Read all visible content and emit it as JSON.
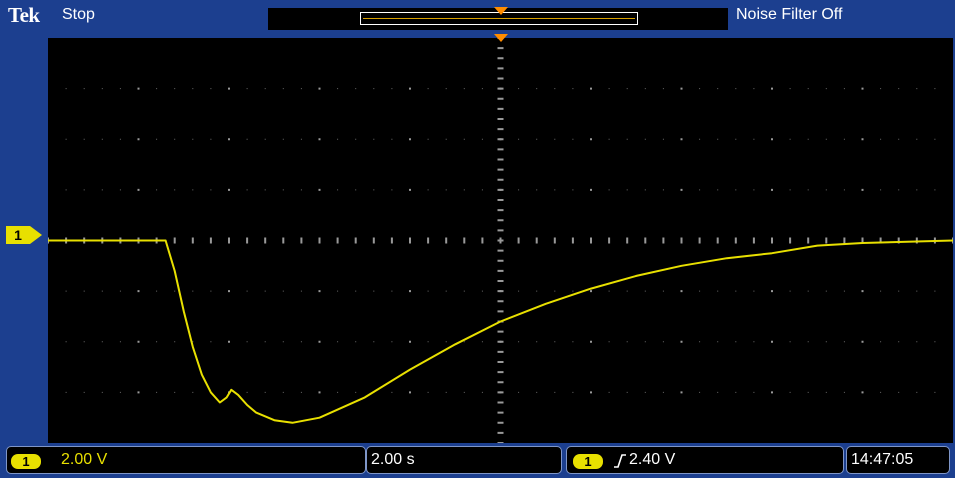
{
  "header": {
    "logo": "Tek",
    "run_state": "Stop",
    "noise_filter": "Noise Filter Off"
  },
  "channel_marker": "1",
  "footer": {
    "ch1_badge": "1",
    "ch1_scale": "2.00 V",
    "timebase": "2.00 s",
    "trigger_badge": "1",
    "trigger_level": "2.40 V",
    "time": "14:47:05"
  },
  "colors": {
    "frame": "#1c3f8f",
    "trace": "#e8e000",
    "trigger_marker": "#ff8c00",
    "grid_dots": "#9a9a9a"
  },
  "icons": {
    "trigger_position": "triangle-down-icon",
    "channel_marker": "pointer-right-icon",
    "trigger_edge": "rising-edge-icon"
  },
  "chart_data": {
    "type": "line",
    "title": "",
    "xlabel": "",
    "ylabel": "",
    "x_divisions": 10,
    "y_divisions": 8,
    "xlim": [
      -10,
      10
    ],
    "ylim": [
      -6,
      10
    ],
    "series": [
      {
        "x": [
          -10,
          -7.4,
          -7.2,
          -7,
          -6.8,
          -6.6,
          -6.4,
          -6.2,
          -6.05,
          -5.95,
          -5.8,
          -5.6,
          -5.4,
          -5,
          -4.6,
          -4,
          -3,
          -2,
          -1,
          0,
          1,
          2,
          3,
          4,
          5,
          6,
          7,
          8,
          10
        ],
        "y": [
          2,
          2,
          0.8,
          -0.8,
          -2.2,
          -3.3,
          -4,
          -4.4,
          -4.2,
          -3.9,
          -4.1,
          -4.5,
          -4.8,
          -5.1,
          -5.2,
          -5,
          -4.2,
          -3.1,
          -2.1,
          -1.2,
          -0.5,
          0.1,
          0.6,
          1,
          1.3,
          1.5,
          1.8,
          1.9,
          2
        ]
      }
    ]
  }
}
